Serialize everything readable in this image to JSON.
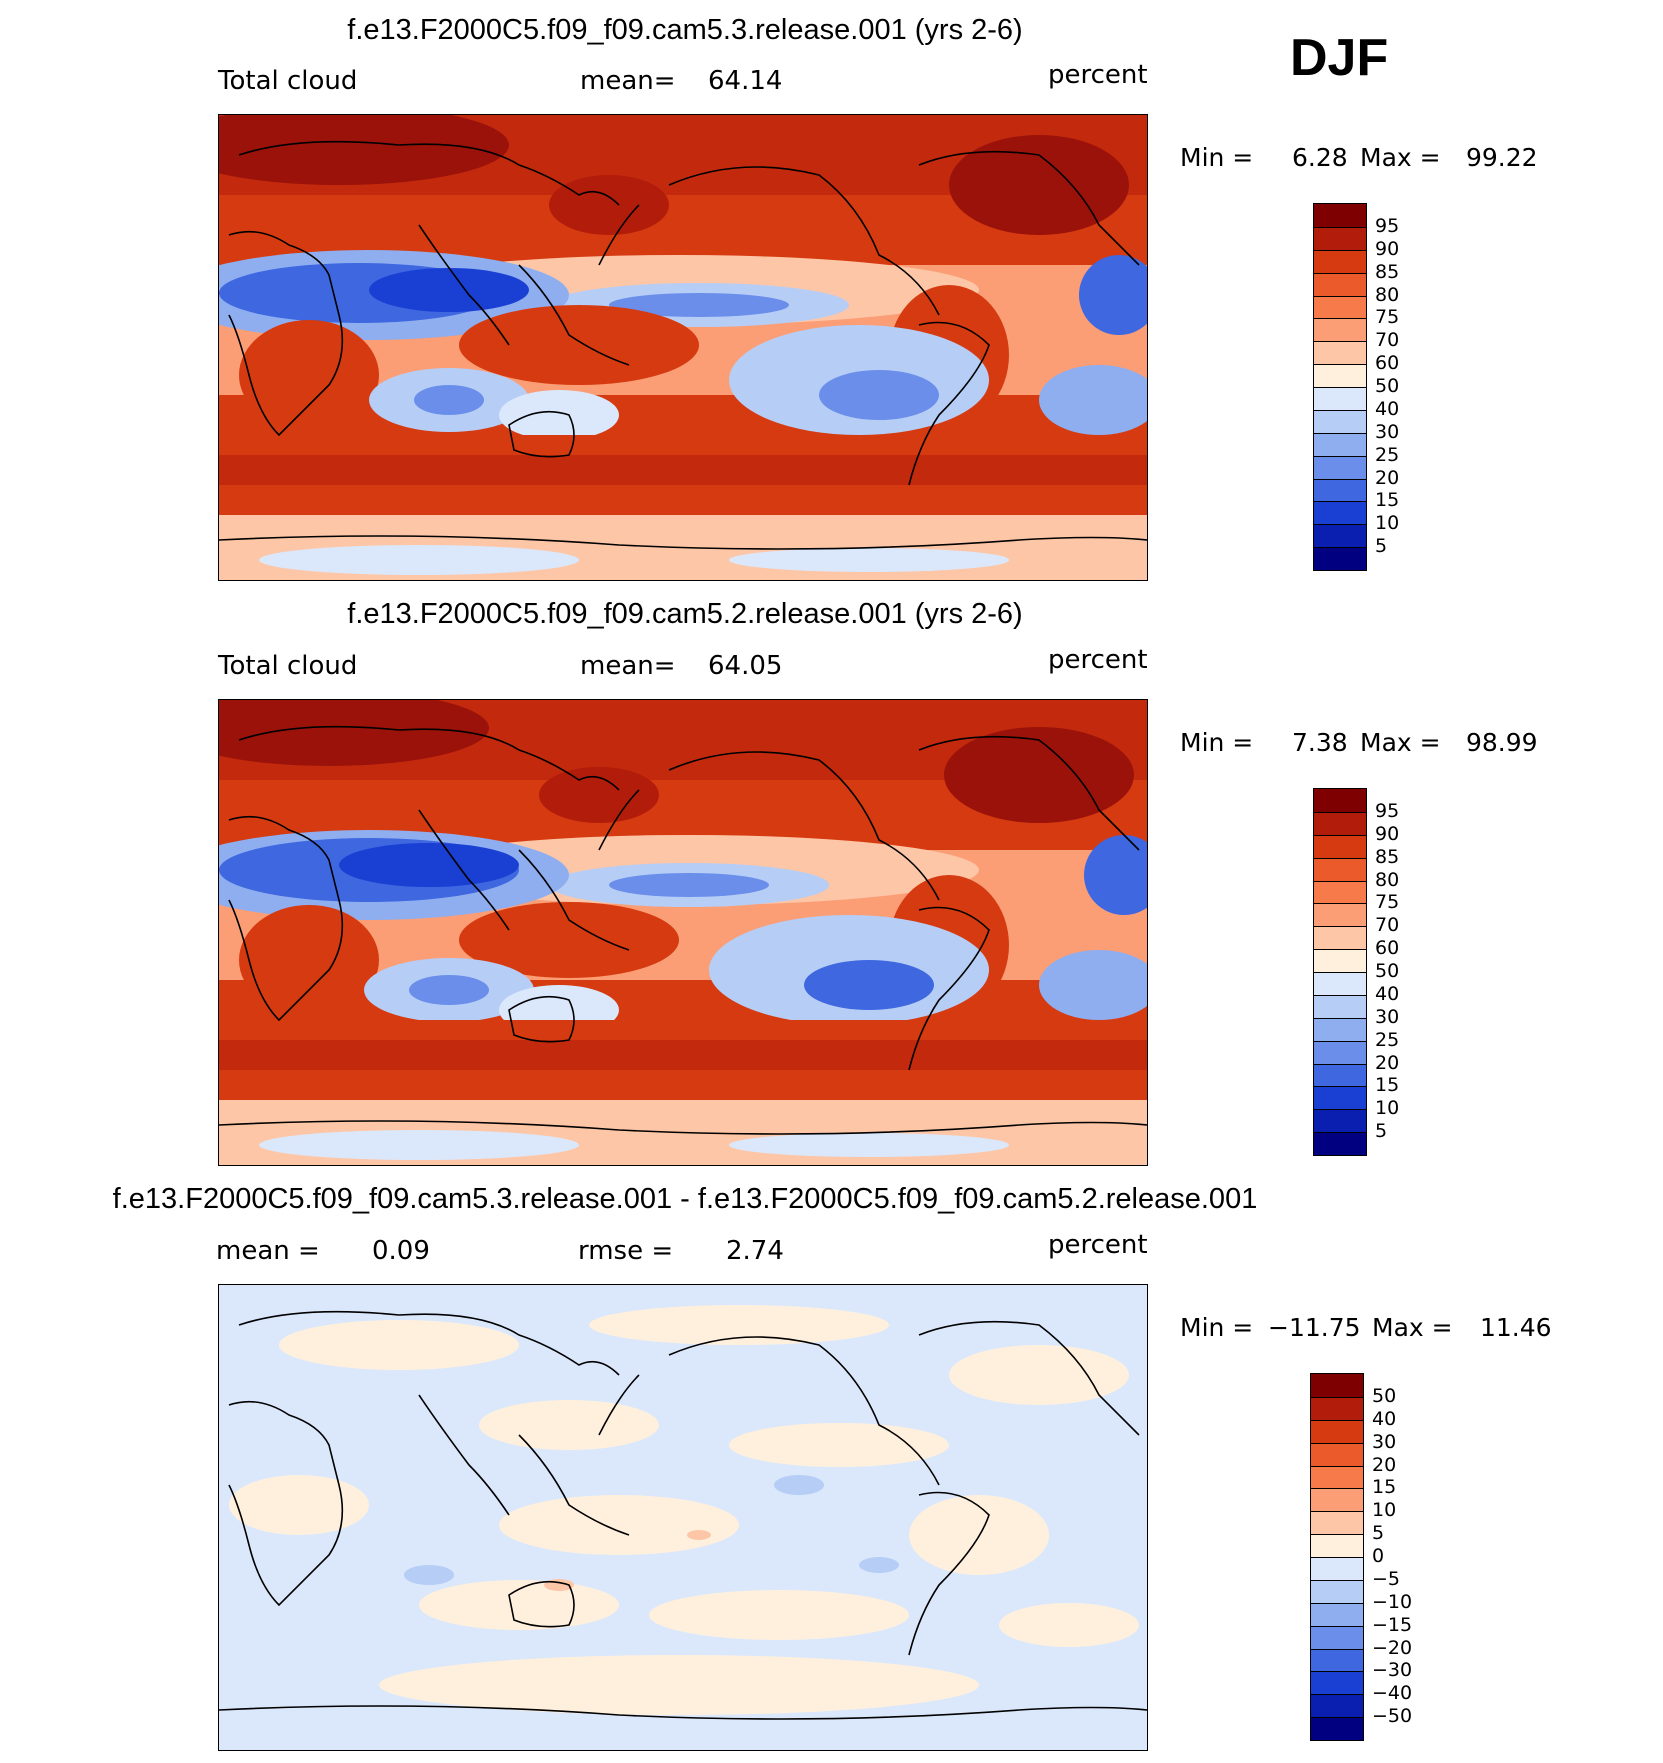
{
  "season": "DJF",
  "panels": [
    {
      "title": "f.e13.F2000C5.f09_f09.cam5.3.release.001 (yrs 2-6)",
      "left_label": "Total cloud",
      "mid_label": "mean=",
      "mid_value": "64.14",
      "units": "percent",
      "min_label": "Min =",
      "min_value": "6.28",
      "max_label": "Max =",
      "max_value": "99.22",
      "colorbar": {
        "labels": [
          "95",
          "90",
          "85",
          "80",
          "75",
          "70",
          "60",
          "50",
          "40",
          "30",
          "25",
          "20",
          "15",
          "10",
          "5"
        ],
        "colors": [
          "#7f0000",
          "#b21c0a",
          "#d63a10",
          "#eb5a2b",
          "#f77b4a",
          "#fb9e76",
          "#fdc6a7",
          "#fff0dd",
          "#dbe8fb",
          "#b6cdf6",
          "#8eaef0",
          "#6a8eea",
          "#3e67e0",
          "#1a3fd3",
          "#0a1fb0",
          "#000080"
        ]
      }
    },
    {
      "title": "f.e13.F2000C5.f09_f09.cam5.2.release.001 (yrs 2-6)",
      "left_label": "Total cloud",
      "mid_label": "mean=",
      "mid_value": "64.05",
      "units": "percent",
      "min_label": "Min =",
      "min_value": "7.38",
      "max_label": "Max =",
      "max_value": "98.99",
      "colorbar": {
        "labels": [
          "95",
          "90",
          "85",
          "80",
          "75",
          "70",
          "60",
          "50",
          "40",
          "30",
          "25",
          "20",
          "15",
          "10",
          "5"
        ],
        "colors": [
          "#7f0000",
          "#b21c0a",
          "#d63a10",
          "#eb5a2b",
          "#f77b4a",
          "#fb9e76",
          "#fdc6a7",
          "#fff0dd",
          "#dbe8fb",
          "#b6cdf6",
          "#8eaef0",
          "#6a8eea",
          "#3e67e0",
          "#1a3fd3",
          "#0a1fb0",
          "#000080"
        ]
      }
    },
    {
      "title": "f.e13.F2000C5.f09_f09.cam5.3.release.001 - f.e13.F2000C5.f09_f09.cam5.2.release.001",
      "left_label": "mean =",
      "left_value": "0.09",
      "mid_label": "rmse =",
      "mid_value": "2.74",
      "units": "percent",
      "min_label": "Min =",
      "min_value": "−11.75",
      "max_label": "Max =",
      "max_value": "11.46",
      "colorbar": {
        "labels": [
          "50",
          "40",
          "30",
          "20",
          "15",
          "10",
          "5",
          "0",
          "−5",
          "−10",
          "−15",
          "−20",
          "−30",
          "−40",
          "−50"
        ],
        "colors": [
          "#7f0000",
          "#b21c0a",
          "#d63a10",
          "#eb5a2b",
          "#f77b4a",
          "#fb9e76",
          "#fdc6a7",
          "#fff0dd",
          "#dbe8fb",
          "#b6cdf6",
          "#8eaef0",
          "#6a8eea",
          "#3e67e0",
          "#1a3fd3",
          "#0a1fb0",
          "#000080"
        ]
      }
    }
  ]
}
